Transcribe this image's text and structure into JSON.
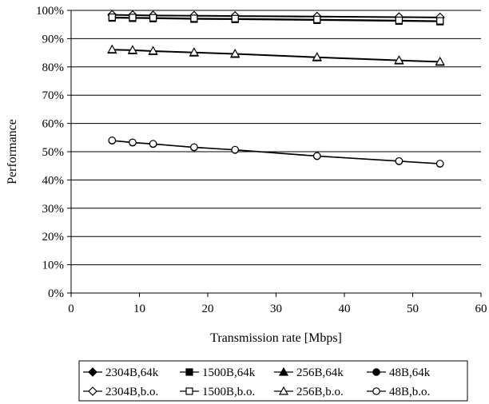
{
  "chart_data": {
    "type": "line",
    "xlabel": "Transmission rate [Mbps]",
    "ylabel": "Performance",
    "xlim": [
      0,
      60
    ],
    "ylim": [
      0,
      100
    ],
    "x_ticks": [
      0,
      10,
      20,
      30,
      40,
      50,
      60
    ],
    "y_ticks": [
      0,
      10,
      20,
      30,
      40,
      50,
      60,
      70,
      80,
      90,
      100
    ],
    "x_tick_labels": [
      "0",
      "10",
      "20",
      "30",
      "40",
      "50",
      "60"
    ],
    "y_tick_labels": [
      "0%",
      "10%",
      "20%",
      "30%",
      "40%",
      "50%",
      "60%",
      "70%",
      "80%",
      "90%",
      "100%"
    ],
    "grid": "horizontal",
    "legend_position": "bottom",
    "x": [
      6,
      9,
      12,
      18,
      24,
      36,
      48,
      54
    ],
    "series": [
      {
        "name": "2304B,64k",
        "marker": "diamond-filled",
        "values": [
          98.3,
          98.2,
          98.1,
          98.0,
          97.9,
          97.7,
          97.5,
          97.4
        ]
      },
      {
        "name": "1500B,64k",
        "marker": "square-filled",
        "values": [
          97.3,
          97.2,
          97.1,
          96.9,
          96.8,
          96.5,
          96.2,
          96.0
        ]
      },
      {
        "name": "256B,64k",
        "marker": "triangle-filled",
        "values": [
          86.0,
          85.8,
          85.5,
          85.0,
          84.5,
          83.3,
          82.2,
          81.7
        ]
      },
      {
        "name": "48B,64k",
        "marker": "circle-filled",
        "values": [
          53.9,
          53.2,
          52.7,
          51.5,
          50.6,
          48.4,
          46.6,
          45.7
        ]
      },
      {
        "name": "2304B,b.o.",
        "marker": "diamond-open",
        "values": [
          98.5,
          98.4,
          98.3,
          98.2,
          98.1,
          97.9,
          97.7,
          97.6
        ]
      },
      {
        "name": "1500B,b.o.",
        "marker": "square-open",
        "values": [
          97.6,
          97.5,
          97.4,
          97.2,
          97.1,
          96.8,
          96.5,
          96.3
        ]
      },
      {
        "name": "256B,b.o.",
        "marker": "triangle-open",
        "values": [
          86.2,
          86.0,
          85.7,
          85.2,
          84.7,
          83.5,
          82.4,
          81.9
        ]
      },
      {
        "name": "48B,b.o.",
        "marker": "circle-open",
        "values": [
          54.0,
          53.3,
          52.8,
          51.6,
          50.7,
          48.5,
          46.7,
          45.8
        ]
      }
    ]
  }
}
